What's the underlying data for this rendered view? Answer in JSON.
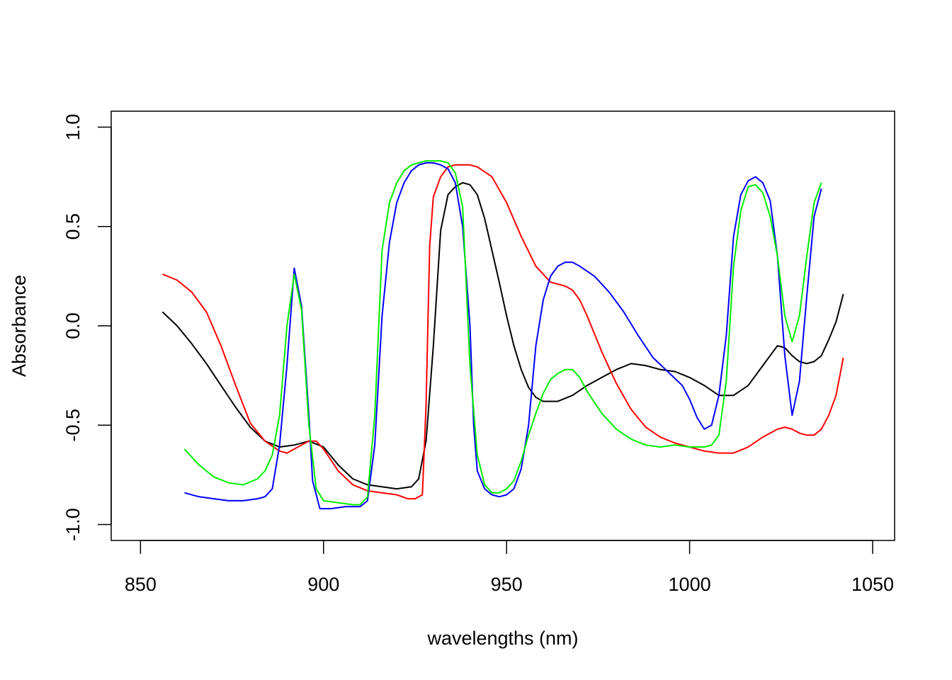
{
  "chart_data": {
    "type": "line",
    "title": "",
    "xlabel": "wavelengths (nm)",
    "ylabel": "Absorbance",
    "xlim": [
      842,
      1056
    ],
    "ylim": [
      -1.08,
      1.08
    ],
    "x_ticks": [
      850,
      900,
      950,
      1000,
      1050
    ],
    "x_tick_labels": [
      "850",
      "900",
      "950",
      "1000",
      "1050"
    ],
    "y_ticks": [
      -1.0,
      -0.5,
      0.0,
      0.5,
      1.0
    ],
    "y_tick_labels": [
      "-1.0",
      "-0.5",
      "0.0",
      "0.5",
      "1.0"
    ],
    "grid": false,
    "legend": "none",
    "series": [
      {
        "color": "#000000",
        "points": [
          [
            856,
            0.07
          ],
          [
            860,
            0.0
          ],
          [
            864,
            -0.09
          ],
          [
            868,
            -0.19
          ],
          [
            872,
            -0.3
          ],
          [
            876,
            -0.41
          ],
          [
            880,
            -0.51
          ],
          [
            884,
            -0.58
          ],
          [
            888,
            -0.61
          ],
          [
            892,
            -0.6
          ],
          [
            896,
            -0.58
          ],
          [
            900,
            -0.61
          ],
          [
            904,
            -0.7
          ],
          [
            908,
            -0.77
          ],
          [
            912,
            -0.8
          ],
          [
            916,
            -0.81
          ],
          [
            920,
            -0.82
          ],
          [
            924,
            -0.81
          ],
          [
            926,
            -0.77
          ],
          [
            928,
            -0.58
          ],
          [
            930,
            -0.1
          ],
          [
            932,
            0.48
          ],
          [
            934,
            0.66
          ],
          [
            936,
            0.7
          ],
          [
            938,
            0.72
          ],
          [
            940,
            0.71
          ],
          [
            942,
            0.66
          ],
          [
            944,
            0.54
          ],
          [
            946,
            0.38
          ],
          [
            948,
            0.22
          ],
          [
            950,
            0.05
          ],
          [
            952,
            -0.1
          ],
          [
            954,
            -0.22
          ],
          [
            956,
            -0.31
          ],
          [
            958,
            -0.36
          ],
          [
            960,
            -0.38
          ],
          [
            964,
            -0.38
          ],
          [
            968,
            -0.35
          ],
          [
            972,
            -0.3
          ],
          [
            976,
            -0.26
          ],
          [
            980,
            -0.22
          ],
          [
            984,
            -0.19
          ],
          [
            988,
            -0.2
          ],
          [
            992,
            -0.22
          ],
          [
            996,
            -0.23
          ],
          [
            1000,
            -0.26
          ],
          [
            1004,
            -0.3
          ],
          [
            1008,
            -0.35
          ],
          [
            1012,
            -0.35
          ],
          [
            1016,
            -0.3
          ],
          [
            1020,
            -0.2
          ],
          [
            1024,
            -0.1
          ],
          [
            1026,
            -0.11
          ],
          [
            1028,
            -0.15
          ],
          [
            1030,
            -0.18
          ],
          [
            1032,
            -0.19
          ],
          [
            1034,
            -0.18
          ],
          [
            1036,
            -0.15
          ],
          [
            1038,
            -0.07
          ],
          [
            1040,
            0.02
          ],
          [
            1042,
            0.16
          ]
        ]
      },
      {
        "color": "#ff0000",
        "points": [
          [
            856,
            0.26
          ],
          [
            860,
            0.23
          ],
          [
            864,
            0.17
          ],
          [
            868,
            0.07
          ],
          [
            872,
            -0.1
          ],
          [
            876,
            -0.3
          ],
          [
            880,
            -0.49
          ],
          [
            884,
            -0.58
          ],
          [
            888,
            -0.63
          ],
          [
            890,
            -0.64
          ],
          [
            892,
            -0.62
          ],
          [
            894,
            -0.6
          ],
          [
            896,
            -0.58
          ],
          [
            898,
            -0.58
          ],
          [
            900,
            -0.62
          ],
          [
            904,
            -0.73
          ],
          [
            908,
            -0.8
          ],
          [
            912,
            -0.83
          ],
          [
            916,
            -0.84
          ],
          [
            920,
            -0.85
          ],
          [
            923,
            -0.87
          ],
          [
            925,
            -0.87
          ],
          [
            927,
            -0.85
          ],
          [
            928,
            -0.4
          ],
          [
            929,
            0.4
          ],
          [
            930,
            0.65
          ],
          [
            932,
            0.75
          ],
          [
            934,
            0.8
          ],
          [
            936,
            0.81
          ],
          [
            940,
            0.81
          ],
          [
            942,
            0.8
          ],
          [
            946,
            0.75
          ],
          [
            950,
            0.62
          ],
          [
            954,
            0.45
          ],
          [
            958,
            0.3
          ],
          [
            962,
            0.22
          ],
          [
            966,
            0.2
          ],
          [
            968,
            0.18
          ],
          [
            970,
            0.13
          ],
          [
            972,
            0.05
          ],
          [
            976,
            -0.13
          ],
          [
            980,
            -0.29
          ],
          [
            984,
            -0.42
          ],
          [
            988,
            -0.51
          ],
          [
            992,
            -0.56
          ],
          [
            996,
            -0.59
          ],
          [
            1000,
            -0.61
          ],
          [
            1004,
            -0.63
          ],
          [
            1008,
            -0.64
          ],
          [
            1012,
            -0.64
          ],
          [
            1016,
            -0.61
          ],
          [
            1020,
            -0.56
          ],
          [
            1024,
            -0.52
          ],
          [
            1026,
            -0.51
          ],
          [
            1028,
            -0.52
          ],
          [
            1030,
            -0.54
          ],
          [
            1032,
            -0.55
          ],
          [
            1034,
            -0.55
          ],
          [
            1036,
            -0.52
          ],
          [
            1038,
            -0.45
          ],
          [
            1040,
            -0.35
          ],
          [
            1042,
            -0.16
          ]
        ]
      },
      {
        "color": "#0000ff",
        "points": [
          [
            862,
            -0.84
          ],
          [
            866,
            -0.86
          ],
          [
            870,
            -0.87
          ],
          [
            874,
            -0.88
          ],
          [
            878,
            -0.88
          ],
          [
            882,
            -0.87
          ],
          [
            884,
            -0.86
          ],
          [
            886,
            -0.82
          ],
          [
            888,
            -0.6
          ],
          [
            890,
            -0.2
          ],
          [
            892,
            0.29
          ],
          [
            894,
            0.1
          ],
          [
            896,
            -0.45
          ],
          [
            897,
            -0.78
          ],
          [
            899,
            -0.92
          ],
          [
            902,
            -0.92
          ],
          [
            906,
            -0.91
          ],
          [
            910,
            -0.91
          ],
          [
            912,
            -0.88
          ],
          [
            914,
            -0.6
          ],
          [
            916,
            0.05
          ],
          [
            918,
            0.42
          ],
          [
            920,
            0.62
          ],
          [
            922,
            0.72
          ],
          [
            924,
            0.78
          ],
          [
            926,
            0.81
          ],
          [
            928,
            0.82
          ],
          [
            930,
            0.82
          ],
          [
            932,
            0.81
          ],
          [
            934,
            0.79
          ],
          [
            936,
            0.72
          ],
          [
            938,
            0.5
          ],
          [
            940,
            0.0
          ],
          [
            941,
            -0.5
          ],
          [
            942,
            -0.73
          ],
          [
            944,
            -0.82
          ],
          [
            946,
            -0.85
          ],
          [
            948,
            -0.86
          ],
          [
            950,
            -0.85
          ],
          [
            952,
            -0.82
          ],
          [
            954,
            -0.72
          ],
          [
            956,
            -0.5
          ],
          [
            958,
            -0.1
          ],
          [
            960,
            0.13
          ],
          [
            962,
            0.25
          ],
          [
            964,
            0.3
          ],
          [
            966,
            0.32
          ],
          [
            968,
            0.32
          ],
          [
            970,
            0.3
          ],
          [
            974,
            0.25
          ],
          [
            978,
            0.17
          ],
          [
            982,
            0.07
          ],
          [
            986,
            -0.05
          ],
          [
            990,
            -0.16
          ],
          [
            994,
            -0.23
          ],
          [
            998,
            -0.3
          ],
          [
            1000,
            -0.37
          ],
          [
            1002,
            -0.46
          ],
          [
            1004,
            -0.52
          ],
          [
            1006,
            -0.5
          ],
          [
            1008,
            -0.35
          ],
          [
            1010,
            -0.05
          ],
          [
            1012,
            0.45
          ],
          [
            1014,
            0.66
          ],
          [
            1016,
            0.73
          ],
          [
            1018,
            0.75
          ],
          [
            1020,
            0.72
          ],
          [
            1022,
            0.63
          ],
          [
            1024,
            0.35
          ],
          [
            1026,
            -0.15
          ],
          [
            1028,
            -0.45
          ],
          [
            1030,
            -0.28
          ],
          [
            1032,
            0.15
          ],
          [
            1034,
            0.55
          ],
          [
            1036,
            0.69
          ]
        ]
      },
      {
        "color": "#00ee00",
        "points": [
          [
            862,
            -0.62
          ],
          [
            866,
            -0.7
          ],
          [
            870,
            -0.76
          ],
          [
            874,
            -0.79
          ],
          [
            878,
            -0.8
          ],
          [
            882,
            -0.77
          ],
          [
            884,
            -0.73
          ],
          [
            886,
            -0.65
          ],
          [
            888,
            -0.45
          ],
          [
            890,
            0.0
          ],
          [
            892,
            0.26
          ],
          [
            894,
            0.08
          ],
          [
            896,
            -0.5
          ],
          [
            898,
            -0.82
          ],
          [
            900,
            -0.88
          ],
          [
            904,
            -0.89
          ],
          [
            908,
            -0.9
          ],
          [
            910,
            -0.9
          ],
          [
            912,
            -0.86
          ],
          [
            914,
            -0.45
          ],
          [
            916,
            0.38
          ],
          [
            918,
            0.62
          ],
          [
            920,
            0.72
          ],
          [
            922,
            0.78
          ],
          [
            924,
            0.81
          ],
          [
            926,
            0.82
          ],
          [
            928,
            0.83
          ],
          [
            930,
            0.83
          ],
          [
            932,
            0.83
          ],
          [
            934,
            0.82
          ],
          [
            936,
            0.77
          ],
          [
            938,
            0.6
          ],
          [
            940,
            -0.2
          ],
          [
            942,
            -0.65
          ],
          [
            944,
            -0.8
          ],
          [
            946,
            -0.84
          ],
          [
            948,
            -0.84
          ],
          [
            950,
            -0.82
          ],
          [
            952,
            -0.78
          ],
          [
            954,
            -0.68
          ],
          [
            956,
            -0.55
          ],
          [
            958,
            -0.44
          ],
          [
            960,
            -0.34
          ],
          [
            962,
            -0.27
          ],
          [
            964,
            -0.24
          ],
          [
            966,
            -0.22
          ],
          [
            968,
            -0.22
          ],
          [
            970,
            -0.26
          ],
          [
            972,
            -0.33
          ],
          [
            976,
            -0.44
          ],
          [
            980,
            -0.52
          ],
          [
            984,
            -0.57
          ],
          [
            988,
            -0.6
          ],
          [
            992,
            -0.61
          ],
          [
            996,
            -0.6
          ],
          [
            1000,
            -0.61
          ],
          [
            1004,
            -0.61
          ],
          [
            1006,
            -0.6
          ],
          [
            1008,
            -0.55
          ],
          [
            1010,
            -0.28
          ],
          [
            1012,
            0.3
          ],
          [
            1014,
            0.58
          ],
          [
            1016,
            0.7
          ],
          [
            1018,
            0.71
          ],
          [
            1020,
            0.67
          ],
          [
            1022,
            0.55
          ],
          [
            1024,
            0.35
          ],
          [
            1026,
            0.05
          ],
          [
            1028,
            -0.08
          ],
          [
            1030,
            0.05
          ],
          [
            1032,
            0.35
          ],
          [
            1034,
            0.62
          ],
          [
            1036,
            0.72
          ]
        ]
      }
    ]
  }
}
